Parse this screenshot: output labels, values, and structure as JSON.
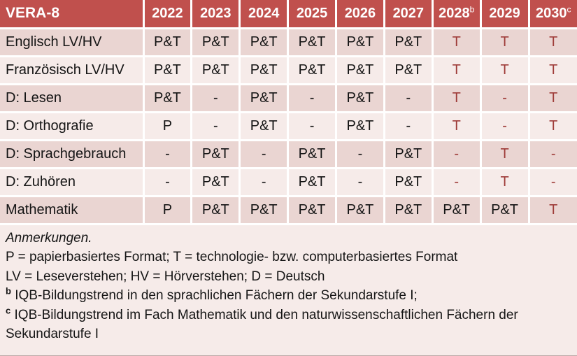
{
  "table": {
    "title": "VERA-8",
    "columns": [
      {
        "label": "2022",
        "sup": ""
      },
      {
        "label": "2023",
        "sup": ""
      },
      {
        "label": "2024",
        "sup": ""
      },
      {
        "label": "2025",
        "sup": ""
      },
      {
        "label": "2026",
        "sup": ""
      },
      {
        "label": "2027",
        "sup": ""
      },
      {
        "label": "2028",
        "sup": "b"
      },
      {
        "label": "2029",
        "sup": ""
      },
      {
        "label": "2030",
        "sup": "c"
      }
    ],
    "rows": [
      {
        "label": "Englisch LV/HV",
        "cells": [
          {
            "v": "P&T",
            "red": false
          },
          {
            "v": "P&T",
            "red": false
          },
          {
            "v": "P&T",
            "red": false
          },
          {
            "v": "P&T",
            "red": false
          },
          {
            "v": "P&T",
            "red": false
          },
          {
            "v": "P&T",
            "red": false
          },
          {
            "v": "T",
            "red": true
          },
          {
            "v": "T",
            "red": true
          },
          {
            "v": "T",
            "red": true
          }
        ]
      },
      {
        "label": "Französisch LV/HV",
        "cells": [
          {
            "v": "P&T",
            "red": false
          },
          {
            "v": "P&T",
            "red": false
          },
          {
            "v": "P&T",
            "red": false
          },
          {
            "v": "P&T",
            "red": false
          },
          {
            "v": "P&T",
            "red": false
          },
          {
            "v": "P&T",
            "red": false
          },
          {
            "v": "T",
            "red": true
          },
          {
            "v": "T",
            "red": true
          },
          {
            "v": "T",
            "red": true
          }
        ]
      },
      {
        "label": "D: Lesen",
        "cells": [
          {
            "v": "P&T",
            "red": false
          },
          {
            "v": "-",
            "red": false
          },
          {
            "v": "P&T",
            "red": false
          },
          {
            "v": "-",
            "red": false
          },
          {
            "v": "P&T",
            "red": false
          },
          {
            "v": "-",
            "red": false
          },
          {
            "v": "T",
            "red": true
          },
          {
            "v": "-",
            "red": true
          },
          {
            "v": "T",
            "red": true
          }
        ]
      },
      {
        "label": "D: Orthografie",
        "cells": [
          {
            "v": "P",
            "red": false
          },
          {
            "v": "-",
            "red": false
          },
          {
            "v": "P&T",
            "red": false
          },
          {
            "v": "-",
            "red": false
          },
          {
            "v": "P&T",
            "red": false
          },
          {
            "v": "-",
            "red": false
          },
          {
            "v": "T",
            "red": true
          },
          {
            "v": "-",
            "red": true
          },
          {
            "v": "T",
            "red": true
          }
        ]
      },
      {
        "label": "D: Sprachgebrauch",
        "cells": [
          {
            "v": "-",
            "red": false
          },
          {
            "v": "P&T",
            "red": false
          },
          {
            "v": "-",
            "red": false
          },
          {
            "v": "P&T",
            "red": false
          },
          {
            "v": "-",
            "red": false
          },
          {
            "v": "P&T",
            "red": false
          },
          {
            "v": "-",
            "red": true
          },
          {
            "v": "T",
            "red": true
          },
          {
            "v": "-",
            "red": true
          }
        ]
      },
      {
        "label": "D: Zuhören",
        "cells": [
          {
            "v": "-",
            "red": false
          },
          {
            "v": "P&T",
            "red": false
          },
          {
            "v": "-",
            "red": false
          },
          {
            "v": "P&T",
            "red": false
          },
          {
            "v": "-",
            "red": false
          },
          {
            "v": "P&T",
            "red": false
          },
          {
            "v": "-",
            "red": true
          },
          {
            "v": "T",
            "red": true
          },
          {
            "v": "-",
            "red": true
          }
        ]
      },
      {
        "label": "Mathematik",
        "cells": [
          {
            "v": "P",
            "red": false
          },
          {
            "v": "P&T",
            "red": false
          },
          {
            "v": "P&T",
            "red": false
          },
          {
            "v": "P&T",
            "red": false
          },
          {
            "v": "P&T",
            "red": false
          },
          {
            "v": "P&T",
            "red": false
          },
          {
            "v": "P&T",
            "red": false
          },
          {
            "v": "P&T",
            "red": false
          },
          {
            "v": "T",
            "red": true
          }
        ]
      }
    ]
  },
  "notes": {
    "heading": "Anmerkungen.",
    "line_formats": "P = papierbasiertes Format; T = technologie- bzw. computerbasiertes Format",
    "line_abbreviations": "LV = Leseverstehen; HV = Hörverstehen; D = Deutsch",
    "note_b": {
      "sup": "b",
      "text": "IQB-Bildungstrend in den sprachlichen Fächern der Sekundarstufe I;"
    },
    "note_c": {
      "sup": "c",
      "text": "IQB-Bildungstrend im Fach Mathematik und den naturwissenschaftlichen Fächern der Sekundarstufe I"
    }
  },
  "colors": {
    "header_bg": "#C0504D",
    "band_dark": "#EAD5D2",
    "band_light": "#F6EBE9",
    "accent_text": "#9E3B38",
    "grid": "#FFFFFF",
    "text": "#151515"
  }
}
